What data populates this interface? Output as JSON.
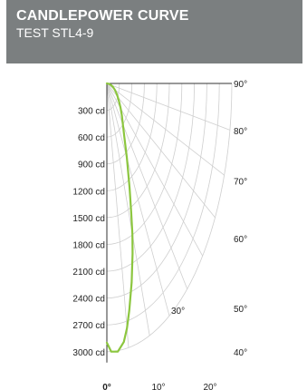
{
  "header": {
    "title": "CANDLEPOWER CURVE",
    "subtitle": "TEST STL4-9"
  },
  "colors": {
    "header_bg": "#7b7f80",
    "curve": "#8cc63f",
    "grid": "#cfcfcf",
    "axis": "#333333"
  },
  "chart_data": {
    "type": "polar-line",
    "title": "CANDLEPOWER CURVE",
    "subtitle": "TEST STL4-9",
    "radial_ticks": [
      "300 cd",
      "600 cd",
      "900 cd",
      "1200 cd",
      "1500 cd",
      "1800 cd",
      "2100 cd",
      "2400 cd",
      "2700 cd",
      "3000 cd"
    ],
    "radial_range": [
      0,
      3000
    ],
    "radial_unit": "cd",
    "angle_ticks": [
      "90°",
      "80°",
      "70°",
      "60°",
      "50°",
      "40°",
      "30°",
      "20°",
      "10°",
      "0°"
    ],
    "angle_range_deg": [
      0,
      90
    ],
    "grid": true,
    "series": [
      {
        "angles_deg": [
          0,
          2,
          5,
          8,
          10,
          12,
          15,
          18,
          20,
          22,
          25,
          30,
          35,
          40,
          45,
          50,
          55,
          60,
          65,
          70,
          75,
          80,
          85,
          90
        ],
        "candela": [
          2900,
          3000,
          3010,
          2920,
          2780,
          2590,
          2300,
          2000,
          1790,
          1560,
          1290,
          960,
          730,
          600,
          510,
          430,
          360,
          300,
          250,
          200,
          150,
          100,
          50,
          0
        ]
      }
    ]
  }
}
